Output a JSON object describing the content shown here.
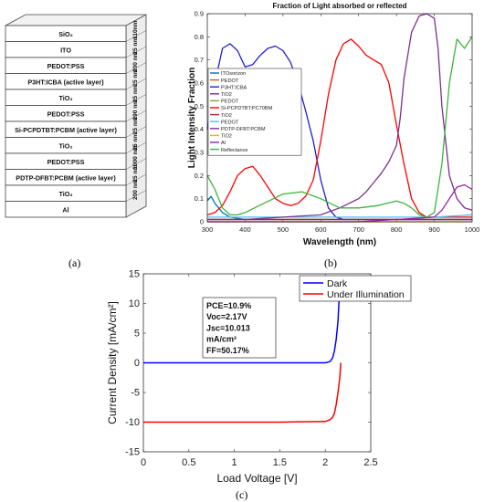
{
  "captions": {
    "a": "(a)",
    "b": "(b)",
    "c": "(c)"
  },
  "stack": {
    "layers": [
      {
        "label": "SiO₂",
        "thickness": "110nm"
      },
      {
        "label": "ITO",
        "thickness": "25 nm"
      },
      {
        "label": "PEDOT:PSS",
        "thickness": "200 nm"
      },
      {
        "label": "P3HT:ICBA (active layer)",
        "thickness": "25 nm"
      },
      {
        "label": "TiO₂",
        "thickness": "25 nm"
      },
      {
        "label": "PEDOT:PSS",
        "thickness": "290 nm"
      },
      {
        "label": "Si-PCPDTBT:PCBM (active layer)",
        "thickness": "25 nm"
      },
      {
        "label": "TiO₂",
        "thickness": "25 nm"
      },
      {
        "label": "PEDOT:PSS",
        "thickness": "1000 nm"
      },
      {
        "label": "PDTP-DFBT:PCBM (active layer)",
        "thickness": "25 nm"
      },
      {
        "label": "TiO₂",
        "thickness": "200 nm"
      },
      {
        "label": "Al",
        "thickness": ""
      }
    ]
  },
  "chart_data": [
    {
      "type": "line",
      "title": "Fraction of Light absorbed or reflected",
      "xlabel": "Wavelength (nm)",
      "ylabel": "Light Intensity Fraction",
      "xlim": [
        300,
        1000
      ],
      "ylim": [
        0,
        0.9
      ],
      "xticks": [
        300,
        400,
        500,
        600,
        700,
        800,
        900,
        1000
      ],
      "yticks": [
        0,
        0.1,
        0.2,
        0.3,
        0.4,
        0.5,
        0.6,
        0.7,
        0.8,
        0.9
      ],
      "legend_position": "top-left",
      "series": [
        {
          "name": "ITOsorizon",
          "color": "#0072BD",
          "x": [
            300,
            310,
            320,
            340,
            360,
            400,
            500,
            600,
            700,
            800,
            900,
            1000
          ],
          "y": [
            0.09,
            0.11,
            0.08,
            0.04,
            0.02,
            0.01,
            0.01,
            0.01,
            0.01,
            0.01,
            0.01,
            0.01
          ]
        },
        {
          "name": "PEDOT",
          "color": "#D95319",
          "x": [
            300,
            400,
            500,
            600,
            700,
            800,
            900,
            1000
          ],
          "y": [
            0.01,
            0.01,
            0.01,
            0.01,
            0.01,
            0.01,
            0.01,
            0.01
          ]
        },
        {
          "name": "P3HT:ICBA",
          "color": "#2020D0",
          "x": [
            300,
            320,
            340,
            360,
            380,
            400,
            420,
            440,
            460,
            480,
            500,
            520,
            540,
            560,
            580,
            600,
            620,
            640,
            660,
            680,
            700,
            750,
            800,
            900,
            1000
          ],
          "y": [
            0.4,
            0.6,
            0.75,
            0.77,
            0.74,
            0.67,
            0.68,
            0.72,
            0.75,
            0.76,
            0.74,
            0.69,
            0.6,
            0.48,
            0.35,
            0.18,
            0.06,
            0.02,
            0.01,
            0.01,
            0.01,
            0.01,
            0.01,
            0.01,
            0.01
          ]
        },
        {
          "name": "TiO2",
          "color": "#7E2F8E",
          "x": [
            300,
            400,
            500,
            600,
            700,
            800,
            900,
            1000
          ],
          "y": [
            0.01,
            0.01,
            0.01,
            0.01,
            0.01,
            0.01,
            0.01,
            0.01
          ]
        },
        {
          "name": "PEDOT",
          "color": "#77AC30",
          "x": [
            300,
            400,
            500,
            600,
            700,
            800,
            900,
            1000
          ],
          "y": [
            0.0,
            0.0,
            0.0,
            0.0,
            0.0,
            0.0,
            0.0,
            0.0
          ]
        },
        {
          "name": "Si-PCPDTBT:PC70BM",
          "color": "#FF0000",
          "x": [
            300,
            320,
            340,
            360,
            380,
            400,
            420,
            440,
            460,
            480,
            500,
            520,
            540,
            560,
            580,
            600,
            620,
            640,
            660,
            680,
            700,
            720,
            740,
            760,
            780,
            800,
            820,
            840,
            860,
            880,
            900,
            950,
            1000
          ],
          "y": [
            0.03,
            0.04,
            0.07,
            0.13,
            0.2,
            0.23,
            0.24,
            0.2,
            0.15,
            0.1,
            0.08,
            0.07,
            0.08,
            0.11,
            0.18,
            0.35,
            0.55,
            0.7,
            0.77,
            0.79,
            0.76,
            0.72,
            0.7,
            0.68,
            0.6,
            0.42,
            0.25,
            0.1,
            0.04,
            0.02,
            0.02,
            0.02,
            0.02
          ]
        },
        {
          "name": "TiO2",
          "color": "#A52A2A",
          "x": [
            300,
            400,
            500,
            600,
            700,
            800,
            900,
            1000
          ],
          "y": [
            0.01,
            0.01,
            0.01,
            0.01,
            0.01,
            0.01,
            0.01,
            0.01
          ]
        },
        {
          "name": "PEDOT",
          "color": "#4DBEEE",
          "x": [
            300,
            400,
            500,
            600,
            700,
            800,
            900,
            1000
          ],
          "y": [
            0.02,
            0.02,
            0.02,
            0.02,
            0.02,
            0.02,
            0.02,
            0.03
          ]
        },
        {
          "name": "PDTP-DFBT:PCBM",
          "color": "#7E2F8E",
          "x": [
            300,
            400,
            500,
            600,
            650,
            700,
            720,
            740,
            760,
            780,
            800,
            810,
            820,
            840,
            860,
            880,
            900,
            910,
            920,
            940,
            960,
            980,
            1000
          ],
          "y": [
            0.01,
            0.01,
            0.02,
            0.03,
            0.06,
            0.1,
            0.13,
            0.17,
            0.21,
            0.26,
            0.33,
            0.45,
            0.62,
            0.82,
            0.89,
            0.9,
            0.88,
            0.75,
            0.5,
            0.2,
            0.1,
            0.06,
            0.05
          ]
        },
        {
          "name": "TiO2",
          "color": "#EDB120",
          "x": [
            300,
            400,
            500,
            600,
            700,
            800,
            900,
            1000
          ],
          "y": [
            0.0,
            0.0,
            0.0,
            0.0,
            0.0,
            0.0,
            0.0,
            0.0
          ]
        },
        {
          "name": "Al",
          "color": "#9B1FA8",
          "x": [
            300,
            400,
            500,
            600,
            700,
            800,
            900,
            920,
            940,
            960,
            980,
            1000
          ],
          "y": [
            0.0,
            0.0,
            0.0,
            0.0,
            0.0,
            0.01,
            0.02,
            0.05,
            0.1,
            0.15,
            0.16,
            0.14
          ]
        },
        {
          "name": "Reflectance",
          "color": "#3CB43C",
          "x": [
            300,
            320,
            340,
            360,
            380,
            400,
            450,
            500,
            550,
            600,
            650,
            700,
            750,
            800,
            820,
            840,
            860,
            880,
            900,
            920,
            940,
            960,
            980,
            1000
          ],
          "y": [
            0.2,
            0.14,
            0.06,
            0.03,
            0.03,
            0.04,
            0.08,
            0.12,
            0.13,
            0.1,
            0.06,
            0.06,
            0.07,
            0.09,
            0.08,
            0.06,
            0.03,
            0.02,
            0.04,
            0.25,
            0.6,
            0.79,
            0.75,
            0.8
          ]
        }
      ]
    },
    {
      "type": "line",
      "title": "",
      "xlabel": "Load Voltage [V]",
      "ylabel": "Current Density [mA/cm²]",
      "xlim": [
        0,
        2.5
      ],
      "ylim": [
        -15,
        15
      ],
      "xticks": [
        0,
        0.5,
        1,
        1.5,
        2,
        2.5
      ],
      "yticks": [
        -15,
        -10,
        -5,
        0,
        5,
        10,
        15
      ],
      "legend_position": "top-right",
      "annotation": [
        "PCE=10.9%",
        "Voc=2.17V",
        "Jsc=10.013",
        "mA/cm²",
        "FF=50.17%"
      ],
      "series": [
        {
          "name": "Dark",
          "color": "#0000FF",
          "x": [
            0,
            1.5,
            2.0,
            2.05,
            2.08,
            2.1,
            2.12,
            2.14,
            2.15,
            2.16
          ],
          "y": [
            0,
            0,
            0,
            0.2,
            0.8,
            2,
            4,
            7,
            10,
            13
          ]
        },
        {
          "name": "Under Illumination",
          "color": "#FF0000",
          "x": [
            0,
            1.5,
            2.0,
            2.05,
            2.08,
            2.1,
            2.12,
            2.14,
            2.16,
            2.17
          ],
          "y": [
            -10,
            -10,
            -9.9,
            -9.6,
            -9.2,
            -8.5,
            -7,
            -5,
            -2.5,
            0
          ]
        }
      ]
    }
  ]
}
